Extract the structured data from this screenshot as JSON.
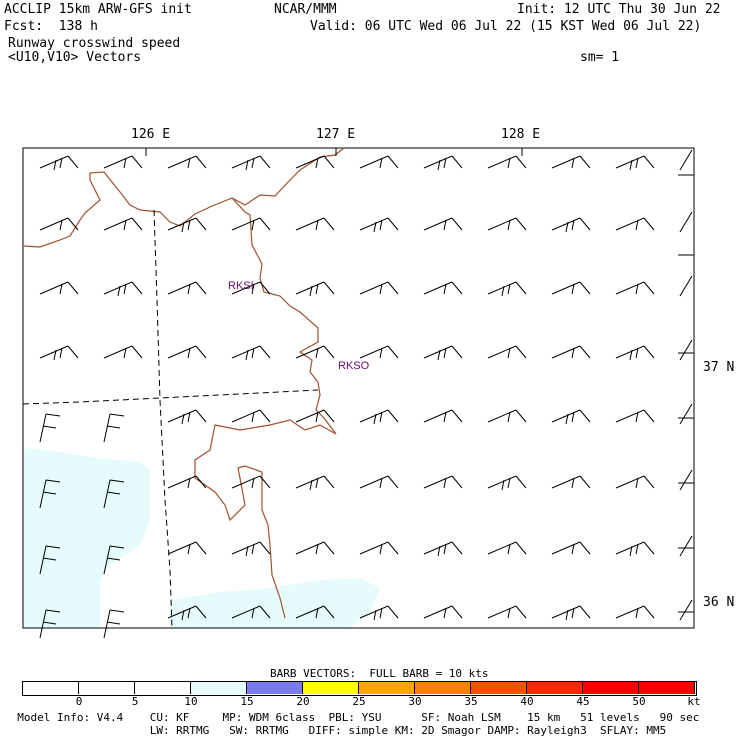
{
  "header": {
    "model_title": "ACCLIP 15km ARW-GFS init",
    "center": "NCAR/MMM",
    "init": "Init: 12 UTC Thu 30 Jun 22",
    "forecast": "Fcst:  138 h",
    "valid": "Valid: 06 UTC Wed 06 Jul 22 (15 KST Wed 06 Jul 22)",
    "field": "Runway crosswind speed",
    "vectors": "<U10,V10> Vectors",
    "smoothing": "sm= 1"
  },
  "map": {
    "lon_labels": [
      "126 E",
      "127 E",
      "128 E"
    ],
    "lat_labels": [
      "37 N",
      "36 N"
    ],
    "stations": [
      "RKSI",
      "RKSO"
    ],
    "coastline_color": "#a0522d",
    "shading_color": "#e6fbfb",
    "label_color": "#6a0a6a"
  },
  "colorbar": {
    "title": "BARB VECTORS:  FULL BARB = 10 kts",
    "labels": [
      "0",
      "5",
      "10",
      "15",
      "20",
      "25",
      "30",
      "35",
      "40",
      "45",
      "50",
      "kt"
    ],
    "colors": [
      "#ffffff",
      "#ffffff",
      "#ffffff",
      "#e6fbfb",
      "#7b7bf0",
      "#ffff00",
      "#ffa500",
      "#ff8000",
      "#ff5000",
      "#ff2a00",
      "#ff0000",
      "#ff0000"
    ]
  },
  "footer": {
    "line1": "  Model Info: V4.4    CU: KF     MP: WDM 6class  PBL: YSU      SF: Noah LSM    15 km   51 levels   90 sec",
    "line2": "                      LW: RRTMG   SW: RRTMG   DIFF: simple KM: 2D Smagor DAMP: Rayleigh3  SFLAY: MM5"
  }
}
